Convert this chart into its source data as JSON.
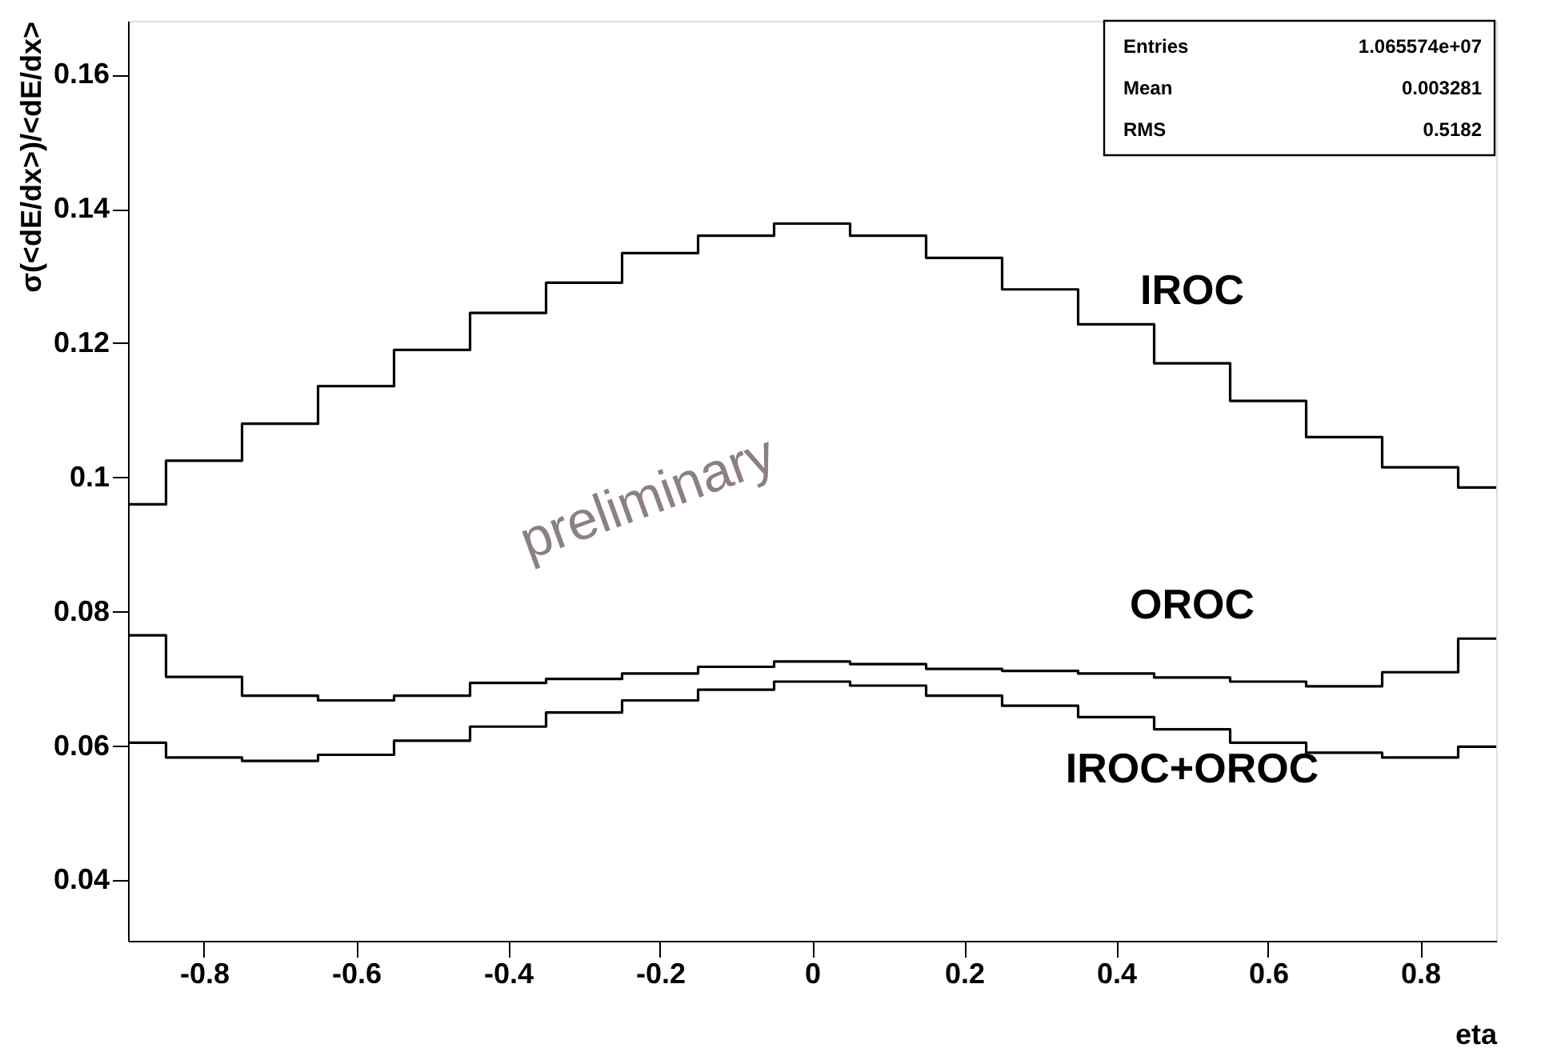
{
  "chart_data": {
    "type": "step",
    "xlabel": "eta",
    "ylabel": "σ(<dE/dx>)/<dE/dx>",
    "x": [
      -0.9,
      -0.8,
      -0.7,
      -0.6,
      -0.5,
      -0.4,
      -0.3,
      -0.2,
      -0.1,
      0,
      0.1,
      0.2,
      0.3,
      0.4,
      0.5,
      0.6,
      0.7,
      0.8,
      0.9
    ],
    "series": [
      {
        "name": "IROC",
        "color": "#000000",
        "values": [
          0.096,
          0.1025,
          0.108,
          0.1136,
          0.119,
          0.1245,
          0.129,
          0.1334,
          0.136,
          0.1378,
          0.136,
          0.1327,
          0.128,
          0.1228,
          0.117,
          0.1114,
          0.106,
          0.1015,
          0.0985
        ]
      },
      {
        "name": "OROC",
        "color": "#000000",
        "values": [
          0.0765,
          0.0703,
          0.0675,
          0.0668,
          0.0675,
          0.0694,
          0.07,
          0.0708,
          0.0718,
          0.0726,
          0.0722,
          0.0715,
          0.0712,
          0.0708,
          0.0702,
          0.0696,
          0.0689,
          0.071,
          0.076
        ]
      },
      {
        "name": "IROC+OROC",
        "color": "#000000",
        "values": [
          0.0605,
          0.0583,
          0.0578,
          0.0587,
          0.0608,
          0.0629,
          0.065,
          0.0668,
          0.0684,
          0.0696,
          0.069,
          0.0675,
          0.066,
          0.0643,
          0.0625,
          0.0605,
          0.059,
          0.0583,
          0.0599
        ]
      }
    ],
    "xlim": [
      -0.9,
      0.9
    ],
    "ylim": [
      0.031,
      0.168
    ],
    "xticks": [
      -0.8,
      -0.6,
      -0.4,
      -0.2,
      0,
      0.2,
      0.4,
      0.6,
      0.8
    ],
    "yticks": [
      0.04,
      0.06,
      0.08,
      0.1,
      0.12,
      0.14,
      0.16
    ],
    "grid": false,
    "marker": "none",
    "line_style": "solid",
    "annotations": [
      "preliminary",
      "Entries",
      "1.065574e+07",
      "Mean",
      "0.003281",
      "RMS",
      "0.5182"
    ]
  }
}
